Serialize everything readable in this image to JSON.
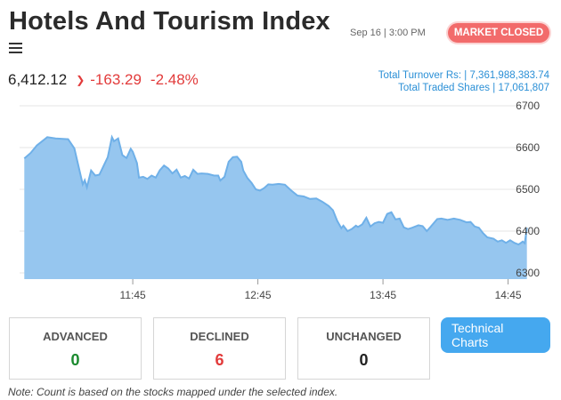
{
  "header": {
    "title": "Hotels And Tourism Index",
    "datetime": "Sep 16 | 3:00 PM",
    "market_status": "MARKET CLOSED",
    "menu_icon": "hamburger-menu-icon"
  },
  "quote": {
    "price": "6,412.12",
    "direction_icon": "chevron-down-icon",
    "change": "-163.29",
    "change_pct": "-2.48%"
  },
  "totals": {
    "turnover": "Total Turnover Rs: | 7,361,988,383.74",
    "traded_shares": "Total Traded Shares | 17,061,807"
  },
  "colors": {
    "accent": "#45a8ef",
    "negative": "#e23b3b",
    "positive": "#1a8a2e",
    "area_fill": "#96c6ef",
    "area_line": "#6fb0e8",
    "badge": "#f26b6b"
  },
  "chart_data": {
    "type": "area",
    "y_ticks": [
      "6700",
      "6600",
      "6500",
      "6400",
      "6300"
    ],
    "ylim": [
      6290,
      6700
    ],
    "x_ticks": [
      "11:45",
      "12:45",
      "13:45",
      "14:45"
    ],
    "x_tick_minutes": [
      705,
      765,
      825,
      885
    ],
    "xlim": [
      652,
      895
    ],
    "grid": true,
    "points": [
      [
        653,
        6574
      ],
      [
        656,
        6587
      ],
      [
        659,
        6605
      ],
      [
        664,
        6625
      ],
      [
        668,
        6622
      ],
      [
        674,
        6620
      ],
      [
        677,
        6598
      ],
      [
        679,
        6555
      ],
      [
        681,
        6512
      ],
      [
        682,
        6522
      ],
      [
        683,
        6505
      ],
      [
        685,
        6545
      ],
      [
        687,
        6533
      ],
      [
        689,
        6535
      ],
      [
        691,
        6556
      ],
      [
        693,
        6577
      ],
      [
        695,
        6625
      ],
      [
        696,
        6615
      ],
      [
        698,
        6622
      ],
      [
        700,
        6582
      ],
      [
        702,
        6575
      ],
      [
        704,
        6597
      ],
      [
        705,
        6590
      ],
      [
        707,
        6563
      ],
      [
        708,
        6528
      ],
      [
        710,
        6530
      ],
      [
        712,
        6525
      ],
      [
        714,
        6533
      ],
      [
        716,
        6528
      ],
      [
        718,
        6546
      ],
      [
        720,
        6557
      ],
      [
        722,
        6550
      ],
      [
        724,
        6538
      ],
      [
        726,
        6547
      ],
      [
        728,
        6528
      ],
      [
        730,
        6532
      ],
      [
        732,
        6526
      ],
      [
        734,
        6547
      ],
      [
        736,
        6537
      ],
      [
        738,
        6538
      ],
      [
        741,
        6537
      ],
      [
        744,
        6533
      ],
      [
        746,
        6533
      ],
      [
        747,
        6521
      ],
      [
        749,
        6530
      ],
      [
        751,
        6566
      ],
      [
        753,
        6577
      ],
      [
        755,
        6578
      ],
      [
        757,
        6566
      ],
      [
        758,
        6545
      ],
      [
        760,
        6527
      ],
      [
        762,
        6515
      ],
      [
        764,
        6500
      ],
      [
        766,
        6497
      ],
      [
        768,
        6503
      ],
      [
        770,
        6512
      ],
      [
        772,
        6511
      ],
      [
        775,
        6513
      ],
      [
        778,
        6511
      ],
      [
        781,
        6497
      ],
      [
        784,
        6485
      ],
      [
        787,
        6483
      ],
      [
        790,
        6477
      ],
      [
        793,
        6478
      ],
      [
        796,
        6470
      ],
      [
        799,
        6460
      ],
      [
        801,
        6450
      ],
      [
        803,
        6425
      ],
      [
        805,
        6407
      ],
      [
        806,
        6413
      ],
      [
        808,
        6400
      ],
      [
        810,
        6405
      ],
      [
        812,
        6413
      ],
      [
        813,
        6410
      ],
      [
        815,
        6416
      ],
      [
        817,
        6432
      ],
      [
        819,
        6411
      ],
      [
        821,
        6419
      ],
      [
        823,
        6422
      ],
      [
        825,
        6420
      ],
      [
        827,
        6441
      ],
      [
        829,
        6445
      ],
      [
        831,
        6428
      ],
      [
        833,
        6430
      ],
      [
        835,
        6409
      ],
      [
        837,
        6405
      ],
      [
        839,
        6408
      ],
      [
        842,
        6414
      ],
      [
        844,
        6412
      ],
      [
        846,
        6400
      ],
      [
        848,
        6411
      ],
      [
        851,
        6429
      ],
      [
        853,
        6430
      ],
      [
        856,
        6427
      ],
      [
        859,
        6430
      ],
      [
        862,
        6427
      ],
      [
        865,
        6421
      ],
      [
        867,
        6422
      ],
      [
        869,
        6411
      ],
      [
        871,
        6408
      ],
      [
        873,
        6395
      ],
      [
        875,
        6385
      ],
      [
        878,
        6382
      ],
      [
        880,
        6375
      ],
      [
        882,
        6378
      ],
      [
        884,
        6372
      ],
      [
        886,
        6378
      ],
      [
        888,
        6372
      ],
      [
        890,
        6368
      ],
      [
        891,
        6371
      ],
      [
        892,
        6375
      ],
      [
        893,
        6371
      ],
      [
        894,
        6408
      ]
    ]
  },
  "stats": {
    "advanced_label": "ADVANCED",
    "advanced_value": "0",
    "declined_label": "DECLINED",
    "declined_value": "6",
    "unchanged_label": "UNCHANGED",
    "unchanged_value": "0"
  },
  "technical_button": "Technical Charts",
  "note": "Note: Count is based on the stocks mapped under the selected index."
}
